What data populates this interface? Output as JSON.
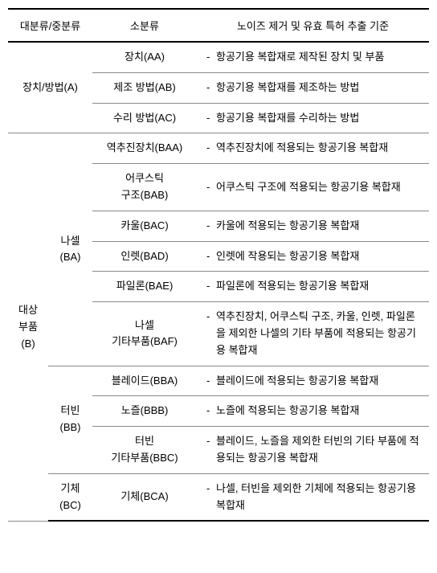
{
  "headers": {
    "h1": "대분류/중분류",
    "h2": "소분류",
    "h3": "노이즈 제거 및 유효 특허 추출 기준"
  },
  "groupA": {
    "label": "장치/방법(A)",
    "rows": [
      {
        "sub": "장치(AA)",
        "desc": "항공기용 복합재로 제작된 장치 및 부품"
      },
      {
        "sub": "제조 방법(AB)",
        "desc": "항공기용 복합재를 제조하는 방법"
      },
      {
        "sub": "수리 방법(AC)",
        "desc": "항공기용 복합재를 수리하는 방법"
      }
    ]
  },
  "groupB": {
    "label1": "대상",
    "label2": "부품(B)",
    "midBA": {
      "l1": "나셀",
      "l2": "(BA)"
    },
    "midBB": {
      "l1": "터빈",
      "l2": "(BB)"
    },
    "midBC": {
      "l1": "기체",
      "l2": "(BC)"
    },
    "ba": [
      {
        "sub": "역추진장치(BAA)",
        "desc": "역추진장치에 적용되는 항공기용 복합재"
      },
      {
        "sub1": "어쿠스틱",
        "sub2": "구조(BAB)",
        "desc": "어쿠스틱 구조에 적용되는 항공기용 복합재"
      },
      {
        "sub": "카울(BAC)",
        "desc": "카울에 적용되는 항공기용 복합재"
      },
      {
        "sub": "인렛(BAD)",
        "desc": "인렛에 작용되는 항공기용 복합재"
      },
      {
        "sub": "파일론(BAE)",
        "desc": "파일론에 적용되는 항공기용 복합재"
      },
      {
        "sub1": "나셀",
        "sub2": "기타부품(BAF)",
        "desc": "역추진장치, 어쿠스틱 구조, 카울, 인렛, 파일론을 제외한 나셀의 기타 부품에 적용되는 항공기용 복합재"
      }
    ],
    "bb": [
      {
        "sub": "블레이드(BBA)",
        "desc": "블레이드에 적용되는 항공기용 복합재"
      },
      {
        "sub": "노즐(BBB)",
        "desc": "노즐에 적용되는 항공기용 복합재"
      },
      {
        "sub1": "터빈",
        "sub2": "기타부품(BBC)",
        "desc": "블레이드, 노즐을 제외한 터빈의 기타 부품에 적용되는 항공기용 복합재"
      }
    ],
    "bc": [
      {
        "sub": "기체(BCA)",
        "desc": "나셀, 터빈을 제외한 기체에 적용되는 항공기용 복합재"
      }
    ]
  }
}
